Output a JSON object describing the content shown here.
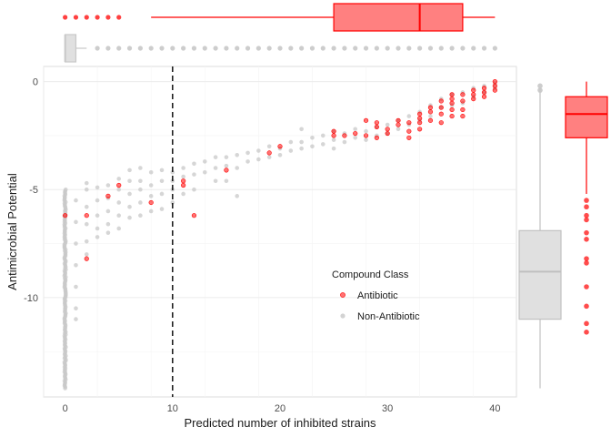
{
  "chart_data": {
    "type": "scatter",
    "title": "",
    "xlabel": "Predicted number of inhibited strains",
    "ylabel": "Antimicrobial Potential",
    "xlim": [
      -2,
      42
    ],
    "ylim": [
      -14.6,
      0.7
    ],
    "xticks": [
      0,
      10,
      20,
      30,
      40
    ],
    "yticks": [
      0,
      -5,
      -10
    ],
    "grid": true,
    "reference_line": {
      "x": 10,
      "style": "dashed"
    },
    "legend": {
      "title": "Compound Class",
      "placement": "lower-right inside",
      "entries": [
        {
          "name": "Antibiotic",
          "color": "#ff0000"
        },
        {
          "name": "Non-Antibiotic",
          "color": "#c8c8c8"
        }
      ]
    },
    "colors": {
      "antibiotic": "#ff0000",
      "non_antibiotic": "#c8c8c8",
      "antibiotic_box_fill": "#ff8080",
      "non_antibiotic_box_fill": "#e0e0e0"
    },
    "series": [
      {
        "name": "Antibiotic",
        "points": [
          [
            0,
            -6.2
          ],
          [
            2,
            -6.2
          ],
          [
            2,
            -8.2
          ],
          [
            4,
            -5.3
          ],
          [
            5,
            -4.8
          ],
          [
            8,
            -5.6
          ],
          [
            11,
            -4.6
          ],
          [
            11,
            -4.8
          ],
          [
            12,
            -6.2
          ],
          [
            15,
            -4.1
          ],
          [
            19,
            -3.3
          ],
          [
            20,
            -3.0
          ],
          [
            25,
            -2.3
          ],
          [
            25,
            -2.5
          ],
          [
            26,
            -2.5
          ],
          [
            27,
            -2.4
          ],
          [
            28,
            -2.5
          ],
          [
            28,
            -1.8
          ],
          [
            29,
            -1.9
          ],
          [
            29,
            -2.1
          ],
          [
            29,
            -2.6
          ],
          [
            30,
            -2.2
          ],
          [
            30,
            -2.4
          ],
          [
            31,
            -1.8
          ],
          [
            31,
            -2.0
          ],
          [
            32,
            -1.9
          ],
          [
            32,
            -2.3
          ],
          [
            32,
            -2.6
          ],
          [
            33,
            -1.5
          ],
          [
            33,
            -1.7
          ],
          [
            33,
            -1.9
          ],
          [
            33,
            -2.2
          ],
          [
            34,
            -1.2
          ],
          [
            34,
            -1.4
          ],
          [
            34,
            -1.8
          ],
          [
            35,
            -0.9
          ],
          [
            35,
            -1.2
          ],
          [
            35,
            -1.5
          ],
          [
            35,
            -1.9
          ],
          [
            36,
            -0.6
          ],
          [
            36,
            -0.8
          ],
          [
            36,
            -1.0
          ],
          [
            36,
            -1.3
          ],
          [
            36,
            -1.6
          ],
          [
            37,
            -0.6
          ],
          [
            37,
            -0.9
          ],
          [
            37,
            -1.3
          ],
          [
            37,
            -1.6
          ],
          [
            38,
            -0.4
          ],
          [
            38,
            -0.6
          ],
          [
            38,
            -0.8
          ],
          [
            39,
            -0.3
          ],
          [
            39,
            -0.5
          ],
          [
            39,
            -0.7
          ],
          [
            40,
            0.0
          ],
          [
            40,
            -0.2
          ],
          [
            40,
            -0.4
          ]
        ]
      },
      {
        "name": "Non-Antibiotic",
        "points": [
          [
            1,
            -5.5
          ],
          [
            1,
            -6.5
          ],
          [
            1,
            -7.5
          ],
          [
            1,
            -8.5
          ],
          [
            1,
            -9.5
          ],
          [
            1,
            -10.5
          ],
          [
            1,
            -11
          ],
          [
            2,
            -5
          ],
          [
            2,
            -5.8
          ],
          [
            2,
            -6.6
          ],
          [
            2,
            -7.4
          ],
          [
            2,
            -8.0
          ],
          [
            2,
            -4.7
          ],
          [
            3,
            -4.9
          ],
          [
            3,
            -5.5
          ],
          [
            3,
            -6.2
          ],
          [
            3,
            -6.8
          ],
          [
            3,
            -7.2
          ],
          [
            4,
            -4.8
          ],
          [
            4,
            -5.4
          ],
          [
            4,
            -6.0
          ],
          [
            4,
            -6.6
          ],
          [
            4,
            -7.0
          ],
          [
            5,
            -4.5
          ],
          [
            5,
            -5.0
          ],
          [
            5,
            -5.6
          ],
          [
            5,
            -6.2
          ],
          [
            5,
            -6.8
          ],
          [
            6,
            -4.1
          ],
          [
            6,
            -4.6
          ],
          [
            6,
            -5.2
          ],
          [
            6,
            -5.8
          ],
          [
            6,
            -6.3
          ],
          [
            7,
            -4.0
          ],
          [
            7,
            -4.6
          ],
          [
            7,
            -5.0
          ],
          [
            7,
            -5.6
          ],
          [
            7,
            -6.2
          ],
          [
            8,
            -4.2
          ],
          [
            8,
            -4.8
          ],
          [
            8,
            -5.3
          ],
          [
            8,
            -6.0
          ],
          [
            9,
            -4.1
          ],
          [
            9,
            -4.6
          ],
          [
            9,
            -5.2
          ],
          [
            9,
            -5.9
          ],
          [
            10,
            -4.2
          ],
          [
            10,
            -4.6
          ],
          [
            10,
            -5.0
          ],
          [
            10,
            -5.6
          ],
          [
            11,
            -4.0
          ],
          [
            11,
            -4.4
          ],
          [
            11,
            -5.2
          ],
          [
            12,
            -3.8
          ],
          [
            12,
            -4.3
          ],
          [
            12,
            -5.0
          ],
          [
            13,
            -3.7
          ],
          [
            13,
            -4.2
          ],
          [
            14,
            -3.5
          ],
          [
            14,
            -4.0
          ],
          [
            14,
            -4.6
          ],
          [
            15,
            -3.5
          ],
          [
            15,
            -3.9
          ],
          [
            15,
            -4.6
          ],
          [
            16,
            -3.4
          ],
          [
            16,
            -4.0
          ],
          [
            16,
            -5.3
          ],
          [
            17,
            -3.3
          ],
          [
            17,
            -3.7
          ],
          [
            18,
            -3.2
          ],
          [
            18,
            -3.6
          ],
          [
            19,
            -3.0
          ],
          [
            19,
            -3.5
          ],
          [
            20,
            -3.1
          ],
          [
            20,
            -3.4
          ],
          [
            21,
            -2.8
          ],
          [
            21,
            -3.2
          ],
          [
            22,
            -2.2
          ],
          [
            22,
            -2.8
          ],
          [
            22,
            -3.1
          ],
          [
            23,
            -2.6
          ],
          [
            23,
            -3.0
          ],
          [
            24,
            -2.5
          ],
          [
            24,
            -2.9
          ],
          [
            25,
            -2.3
          ],
          [
            25,
            -2.7
          ],
          [
            25,
            -3.1
          ],
          [
            26,
            -2.4
          ],
          [
            26,
            -2.8
          ],
          [
            27,
            -2.2
          ],
          [
            27,
            -2.6
          ],
          [
            28,
            -2.3
          ],
          [
            28,
            -2.7
          ],
          [
            29,
            -2.1
          ],
          [
            29,
            -2.5
          ],
          [
            30,
            -2.0
          ],
          [
            30,
            -2.4
          ],
          [
            31,
            -1.8
          ],
          [
            31,
            -2.2
          ],
          [
            32,
            -1.6
          ],
          [
            32,
            -2.0
          ],
          [
            33,
            -1.4
          ],
          [
            33,
            -1.8
          ],
          [
            34,
            -1.1
          ],
          [
            34,
            -1.6
          ],
          [
            35,
            -0.8
          ],
          [
            35,
            -1.2
          ],
          [
            36,
            -0.6
          ],
          [
            36,
            -1.1
          ],
          [
            37,
            -0.5
          ],
          [
            37,
            -1.0
          ],
          [
            38,
            -0.3
          ],
          [
            38,
            -0.7
          ],
          [
            39,
            -0.2
          ],
          [
            39,
            -0.5
          ],
          [
            40,
            -0.1
          ],
          [
            40,
            -0.3
          ]
        ],
        "column_at_zero": {
          "x": 0,
          "y_from": -14.2,
          "y_to": -5.0
        }
      }
    ],
    "x_marginal_boxplots": [
      {
        "name": "Antibiotic",
        "min": 8,
        "q1": 25,
        "median": 33,
        "q3": 37,
        "max": 40,
        "outliers": [
          0,
          1,
          2,
          3,
          4,
          5
        ]
      },
      {
        "name": "Non-Antibiotic",
        "min": 0,
        "q1": 0,
        "median": 0,
        "q3": 1,
        "max": 2,
        "outliers": [
          3,
          4,
          5,
          6,
          7,
          8,
          9,
          10,
          11,
          12,
          13,
          14,
          15,
          16,
          17,
          18,
          19,
          20,
          21,
          22,
          23,
          24,
          25,
          26,
          27,
          28,
          29,
          30,
          31,
          32,
          33,
          34,
          35,
          36,
          37,
          38,
          39,
          40
        ]
      }
    ],
    "y_marginal_boxplots": [
      {
        "name": "Non-Antibiotic",
        "min": -14.2,
        "q1": -11.0,
        "median": -8.8,
        "q3": -6.9,
        "max": -0.3,
        "outliers": [
          -0.4,
          -0.2
        ]
      },
      {
        "name": "Antibiotic",
        "min": -5.2,
        "q1": -2.6,
        "median": -1.5,
        "q3": -0.7,
        "max": 0.0,
        "outliers": [
          -5.5,
          -5.8,
          -6.2,
          -6.4,
          -7.0,
          -7.3,
          -8.2,
          -8.4,
          -9.5,
          -10.4,
          -11.2,
          -11.6
        ]
      }
    ]
  }
}
